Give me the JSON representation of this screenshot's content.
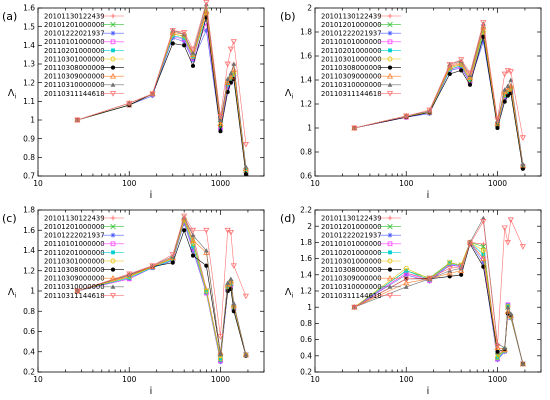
{
  "chart_data": [
    {
      "type": "line",
      "panel_label": "(a)",
      "xscale": "log",
      "xlabel": "i",
      "ylabel": "Λ",
      "ylabel_sub": "i",
      "xlim": [
        10,
        3000
      ],
      "ylim": [
        0.7,
        1.6
      ],
      "xticks": [
        10,
        100,
        1000
      ],
      "xtick_labels": [
        "10",
        "100",
        "1000"
      ],
      "yticks": [
        0.7,
        0.8,
        0.9,
        1.0,
        1.1,
        1.2,
        1.3,
        1.4,
        1.5,
        1.6
      ],
      "ytick_labels": [
        "0.7",
        "0.8",
        "0.9",
        "1",
        "1.1",
        "1.2",
        "1.3",
        "1.4",
        "1.5",
        "1.6"
      ],
      "x": [
        27,
        100,
        180,
        300,
        400,
        500,
        700,
        1000,
        1200,
        1300,
        1400,
        1900
      ],
      "series": [
        {
          "name": "20101130122439",
          "values": [
            1.0,
            1.08,
            1.14,
            1.47,
            1.46,
            1.35,
            1.6,
            1.0,
            1.2,
            1.23,
            1.3,
            0.72
          ]
        },
        {
          "name": "20101201000000",
          "values": [
            1.0,
            1.08,
            1.14,
            1.46,
            1.45,
            1.34,
            1.59,
            0.98,
            1.19,
            1.22,
            1.25,
            0.73
          ]
        },
        {
          "name": "20101222021937",
          "values": [
            1.0,
            1.08,
            1.13,
            1.44,
            1.42,
            1.32,
            1.48,
            0.95,
            1.17,
            1.2,
            1.22,
            0.73
          ]
        },
        {
          "name": "20110101000000",
          "values": [
            1.0,
            1.08,
            1.14,
            1.45,
            1.43,
            1.33,
            1.52,
            0.96,
            1.18,
            1.21,
            1.23,
            0.73
          ]
        },
        {
          "name": "20110201000000",
          "values": [
            1.0,
            1.08,
            1.14,
            1.45,
            1.44,
            1.34,
            1.55,
            0.97,
            1.19,
            1.22,
            1.24,
            0.73
          ]
        },
        {
          "name": "20110301000000",
          "values": [
            1.0,
            1.08,
            1.14,
            1.46,
            1.45,
            1.34,
            1.57,
            0.97,
            1.2,
            1.22,
            1.25,
            0.73
          ]
        },
        {
          "name": "20110308000000",
          "values": [
            1.0,
            1.08,
            1.14,
            1.41,
            1.4,
            1.29,
            1.55,
            0.94,
            1.15,
            1.2,
            1.22,
            0.71
          ]
        },
        {
          "name": "20110309000000",
          "values": [
            1.0,
            1.09,
            1.14,
            1.47,
            1.46,
            1.35,
            1.58,
            0.98,
            1.2,
            1.23,
            1.27,
            0.74
          ]
        },
        {
          "name": "20110310000000",
          "values": [
            1.0,
            1.09,
            1.14,
            1.48,
            1.46,
            1.36,
            1.62,
            1.0,
            1.22,
            1.25,
            1.3,
            0.75
          ]
        },
        {
          "name": "20110311144618",
          "values": [
            1.0,
            1.09,
            1.14,
            1.48,
            1.47,
            1.38,
            1.63,
            1.02,
            1.3,
            1.38,
            1.42,
            0.87
          ]
        }
      ]
    },
    {
      "type": "line",
      "panel_label": "(b)",
      "xscale": "log",
      "xlabel": "i",
      "ylabel": "Λ",
      "ylabel_sub": "i",
      "xlim": [
        10,
        3000
      ],
      "ylim": [
        0.6,
        2.0
      ],
      "xticks": [
        10,
        100,
        1000
      ],
      "xtick_labels": [
        "10",
        "100",
        "1000"
      ],
      "yticks": [
        0.6,
        0.8,
        1.0,
        1.2,
        1.4,
        1.6,
        1.8,
        2.0
      ],
      "ytick_labels": [
        "0.6",
        "0.8",
        "1",
        "1.2",
        "1.4",
        "1.6",
        "1.8",
        "2"
      ],
      "x": [
        27,
        100,
        180,
        300,
        400,
        500,
        700,
        1000,
        1200,
        1300,
        1400,
        1900
      ],
      "series": [
        {
          "name": "20101130122439",
          "values": [
            1.0,
            1.1,
            1.14,
            1.52,
            1.55,
            1.42,
            1.85,
            1.05,
            1.3,
            1.32,
            1.35,
            0.68
          ]
        },
        {
          "name": "20101201000000",
          "values": [
            1.0,
            1.1,
            1.13,
            1.5,
            1.53,
            1.4,
            1.82,
            1.03,
            1.28,
            1.3,
            1.33,
            0.68
          ]
        },
        {
          "name": "20101222021937",
          "values": [
            1.0,
            1.09,
            1.12,
            1.48,
            1.5,
            1.38,
            1.72,
            1.02,
            1.25,
            1.28,
            1.3,
            0.67
          ]
        },
        {
          "name": "20110101000000",
          "values": [
            1.0,
            1.09,
            1.13,
            1.49,
            1.51,
            1.39,
            1.76,
            1.03,
            1.26,
            1.29,
            1.31,
            0.68
          ]
        },
        {
          "name": "20110201000000",
          "values": [
            1.0,
            1.1,
            1.13,
            1.49,
            1.52,
            1.4,
            1.78,
            1.03,
            1.27,
            1.3,
            1.32,
            0.68
          ]
        },
        {
          "name": "20110301000000",
          "values": [
            1.0,
            1.1,
            1.13,
            1.5,
            1.53,
            1.4,
            1.8,
            1.03,
            1.28,
            1.3,
            1.33,
            0.68
          ]
        },
        {
          "name": "20110308000000",
          "values": [
            1.0,
            1.09,
            1.13,
            1.45,
            1.48,
            1.36,
            1.76,
            1.0,
            1.22,
            1.27,
            1.29,
            0.66
          ]
        },
        {
          "name": "20110309000000",
          "values": [
            1.0,
            1.1,
            1.14,
            1.51,
            1.54,
            1.42,
            1.84,
            1.04,
            1.3,
            1.32,
            1.35,
            0.69
          ]
        },
        {
          "name": "20110310000000",
          "values": [
            1.0,
            1.1,
            1.14,
            1.53,
            1.56,
            1.44,
            1.87,
            1.06,
            1.32,
            1.35,
            1.4,
            0.7
          ]
        },
        {
          "name": "20110311144618",
          "values": [
            1.0,
            1.1,
            1.15,
            1.53,
            1.57,
            1.46,
            1.88,
            1.07,
            1.45,
            1.48,
            1.47,
            0.92
          ]
        }
      ]
    },
    {
      "type": "line",
      "panel_label": "(c)",
      "xscale": "log",
      "xlabel": "i",
      "ylabel": "Λ",
      "ylabel_sub": "i",
      "xlim": [
        10,
        3000
      ],
      "ylim": [
        0.2,
        1.8
      ],
      "xticks": [
        10,
        100,
        1000
      ],
      "xtick_labels": [
        "10",
        "100",
        "1000"
      ],
      "yticks": [
        0.2,
        0.4,
        0.6,
        0.8,
        1.0,
        1.2,
        1.4,
        1.6,
        1.8
      ],
      "ytick_labels": [
        "0.2",
        "0.4",
        "0.6",
        "0.8",
        "1",
        "1.2",
        "1.4",
        "1.6",
        "1.8"
      ],
      "x": [
        27,
        100,
        180,
        300,
        400,
        500,
        700,
        1000,
        1200,
        1300,
        1400,
        1900
      ],
      "series": [
        {
          "name": "20101130122439",
          "values": [
            1.0,
            1.15,
            1.24,
            1.33,
            1.71,
            1.55,
            1.02,
            0.35,
            1.05,
            1.1,
            0.85,
            0.37
          ]
        },
        {
          "name": "20101201000000",
          "values": [
            1.0,
            1.14,
            1.24,
            1.32,
            1.7,
            1.5,
            1.0,
            0.34,
            1.04,
            1.08,
            0.84,
            0.37
          ]
        },
        {
          "name": "20101222021937",
          "values": [
            1.0,
            1.12,
            1.23,
            1.3,
            1.67,
            1.4,
            0.98,
            0.3,
            1.0,
            1.05,
            0.82,
            0.37
          ]
        },
        {
          "name": "20110101000000",
          "values": [
            1.0,
            1.12,
            1.23,
            1.31,
            1.68,
            1.42,
            0.98,
            0.31,
            1.02,
            1.06,
            0.83,
            0.37
          ]
        },
        {
          "name": "20110201000000",
          "values": [
            1.0,
            1.13,
            1.23,
            1.31,
            1.69,
            1.44,
            0.99,
            0.32,
            1.03,
            1.07,
            0.83,
            0.37
          ]
        },
        {
          "name": "20110301000000",
          "values": [
            1.0,
            1.14,
            1.24,
            1.32,
            1.7,
            1.47,
            1.0,
            0.33,
            1.04,
            1.08,
            0.84,
            0.37
          ]
        },
        {
          "name": "20110308000000",
          "values": [
            1.0,
            1.16,
            1.24,
            1.28,
            1.6,
            1.35,
            1.25,
            0.38,
            1.0,
            1.02,
            0.8,
            0.36
          ]
        },
        {
          "name": "20110309000000",
          "values": [
            1.0,
            1.16,
            1.24,
            1.33,
            1.72,
            1.5,
            1.38,
            0.39,
            1.06,
            1.1,
            0.86,
            0.37
          ]
        },
        {
          "name": "20110310000000",
          "values": [
            1.0,
            1.16,
            1.25,
            1.34,
            1.73,
            1.55,
            1.4,
            0.38,
            1.08,
            1.12,
            0.88,
            0.37
          ]
        },
        {
          "name": "20110311144618",
          "values": [
            1.0,
            1.17,
            1.25,
            1.36,
            1.74,
            1.6,
            1.6,
            0.55,
            1.6,
            1.58,
            1.25,
            0.95
          ]
        }
      ]
    },
    {
      "type": "line",
      "panel_label": "(d)",
      "xscale": "log",
      "xlabel": "i",
      "ylabel": "Λ",
      "ylabel_sub": "i",
      "xlim": [
        10,
        3000
      ],
      "ylim": [
        0.2,
        2.2
      ],
      "xticks": [
        10,
        100,
        1000
      ],
      "xtick_labels": [
        "10",
        "100",
        "1000"
      ],
      "yticks": [
        0.2,
        0.4,
        0.6,
        0.8,
        1.0,
        1.2,
        1.4,
        1.6,
        1.8,
        2.0,
        2.2
      ],
      "ytick_labels": [
        "0.2",
        "0.4",
        "0.6",
        "0.8",
        "1",
        "1.2",
        "1.4",
        "1.6",
        "1.8",
        "2",
        "2.2"
      ],
      "x": [
        27,
        100,
        180,
        300,
        400,
        500,
        700,
        1000,
        1200,
        1300,
        1400,
        1900
      ],
      "series": [
        {
          "name": "20101130122439",
          "values": [
            1.0,
            1.42,
            1.35,
            1.55,
            1.52,
            1.8,
            1.78,
            0.42,
            0.48,
            1.0,
            0.88,
            0.3
          ]
        },
        {
          "name": "20101201000000",
          "values": [
            1.0,
            1.45,
            1.36,
            1.55,
            1.52,
            1.8,
            1.75,
            0.4,
            0.47,
            1.0,
            0.88,
            0.3
          ]
        },
        {
          "name": "20101222021937",
          "values": [
            1.0,
            1.4,
            1.32,
            1.52,
            1.5,
            1.8,
            1.55,
            0.35,
            0.45,
            1.03,
            0.87,
            0.3
          ]
        },
        {
          "name": "20110101000000",
          "values": [
            1.0,
            1.42,
            1.33,
            1.53,
            1.5,
            1.8,
            1.6,
            0.36,
            0.46,
            1.03,
            0.87,
            0.3
          ]
        },
        {
          "name": "20110201000000",
          "values": [
            1.0,
            1.45,
            1.34,
            1.54,
            1.51,
            1.8,
            1.65,
            0.37,
            0.46,
            1.02,
            0.87,
            0.3
          ]
        },
        {
          "name": "20110301000000",
          "values": [
            1.0,
            1.48,
            1.35,
            1.55,
            1.52,
            1.8,
            1.7,
            0.38,
            0.47,
            1.01,
            0.88,
            0.3
          ]
        },
        {
          "name": "20110308000000",
          "values": [
            1.0,
            1.35,
            1.35,
            1.38,
            1.4,
            1.78,
            1.5,
            0.45,
            0.48,
            0.92,
            0.9,
            0.3
          ]
        },
        {
          "name": "20110309000000",
          "values": [
            1.0,
            1.3,
            1.35,
            1.42,
            1.45,
            1.8,
            1.6,
            0.5,
            0.48,
            0.95,
            0.9,
            0.3
          ]
        },
        {
          "name": "20110310000000",
          "values": [
            1.0,
            1.25,
            1.35,
            1.45,
            1.48,
            1.8,
            2.1,
            0.55,
            0.5,
            1.0,
            0.92,
            0.3
          ]
        },
        {
          "name": "20110311144618",
          "values": [
            1.0,
            1.35,
            1.36,
            1.48,
            1.5,
            1.78,
            2.06,
            0.52,
            1.98,
            1.8,
            2.08,
            1.75
          ]
        }
      ]
    }
  ],
  "style": {
    "series_colors": [
      "#ff6060",
      "#30c030",
      "#5060ff",
      "#ff40ff",
      "#00d0d0",
      "#e8c000",
      "#000000",
      "#ff8030",
      "#707070",
      "#ff7070"
    ],
    "series_markers": [
      "plus",
      "x",
      "asterisk",
      "square-open",
      "square-filled",
      "circle-open",
      "circle-filled",
      "triangle-open",
      "triangle-filled",
      "triangle-down-open"
    ]
  }
}
